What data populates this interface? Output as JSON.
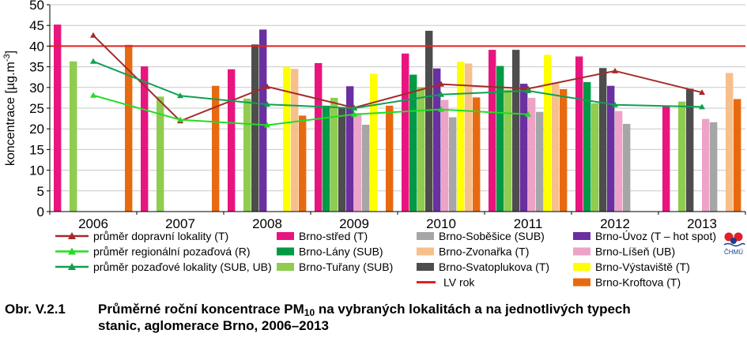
{
  "chart_data": {
    "type": "bar",
    "title": "",
    "xlabel": "",
    "ylabel": "koncentrace [µg.m-3]",
    "ylim": [
      0,
      50
    ],
    "yticks": [
      "0",
      "5",
      "10",
      "15",
      "20",
      "25",
      "30",
      "35",
      "40",
      "45",
      "50"
    ],
    "categories": [
      "2006",
      "2007",
      "2008",
      "2009",
      "2010",
      "2011",
      "2012",
      "2013"
    ],
    "grid": "horizontal",
    "legend_position": "bottom",
    "bar_series": [
      {
        "name": "Brno-střed (T)",
        "color": "#e8157f",
        "values": [
          45.2,
          35.1,
          34.4,
          35.9,
          38.2,
          39.1,
          37.5,
          25.5
        ]
      },
      {
        "name": "Brno-Lány (SUB)",
        "color": "#009a44",
        "values": [
          null,
          null,
          null,
          25.6,
          33.1,
          35.2,
          31.3,
          null
        ]
      },
      {
        "name": "Brno-Tuřany (SUB)",
        "color": "#8fcc4f",
        "values": [
          36.3,
          27.8,
          27.3,
          27.5,
          30.1,
          29.5,
          26.2,
          26.6
        ]
      },
      {
        "name": "Brno-Svatoplukova (T)",
        "color": "#4d4d4d",
        "values": [
          null,
          null,
          40.4,
          25.1,
          43.7,
          39.1,
          34.7,
          29.7
        ]
      },
      {
        "name": "Brno-Úvoz (T – hot spot)",
        "color": "#6a2fa0",
        "values": [
          null,
          null,
          44.0,
          30.3,
          34.6,
          30.9,
          30.4,
          null
        ]
      },
      {
        "name": "Brno-Líšeň (UB)",
        "color": "#eda3c7",
        "values": [
          null,
          null,
          null,
          23.8,
          27.0,
          27.5,
          24.3,
          22.4
        ]
      },
      {
        "name": "Brno-Soběšice (SUB)",
        "color": "#a6a6a6",
        "values": [
          null,
          null,
          null,
          21.0,
          22.8,
          24.1,
          21.2,
          21.6
        ]
      },
      {
        "name": "Brno-Výstaviště (T)",
        "color": "#ffff00",
        "values": [
          null,
          null,
          35.0,
          33.3,
          36.2,
          37.9,
          null,
          null
        ]
      },
      {
        "name": "Brno-Zvonařka (T)",
        "color": "#f7bf8c",
        "values": [
          null,
          null,
          34.5,
          null,
          35.8,
          31.2,
          null,
          33.5
        ]
      },
      {
        "name": "Brno-Kroftova (T)",
        "color": "#e86a10",
        "values": [
          40.3,
          30.4,
          23.2,
          25.6,
          27.6,
          29.6,
          null,
          27.2
        ]
      }
    ],
    "line_series": [
      {
        "name": "průměr dopravní lokality (T)",
        "color": "#a52a2a",
        "values": [
          42.6,
          21.9,
          30.2,
          25.1,
          30.8,
          29.7,
          34.0,
          28.8
        ]
      },
      {
        "name": "průměr regionální pozaďová (R)",
        "color": "#22dd22",
        "values": [
          28.1,
          22.2,
          20.9,
          23.5,
          24.7,
          23.5,
          null,
          null
        ]
      },
      {
        "name": "průměr pozaďové lokality (SUB, UB)",
        "color": "#10a050",
        "values": [
          36.3,
          28.0,
          25.9,
          25.0,
          28.3,
          29.2,
          25.8,
          25.3
        ]
      }
    ],
    "limit_line": {
      "name": "LV rok",
      "value": 40,
      "color": "#e32020"
    }
  },
  "legend": {
    "col1": [
      {
        "label": "průměr dopravní lokality (T)",
        "color": "#a52a2a"
      },
      {
        "label": "průměr regionální pozaďová (R)",
        "color": "#22dd22"
      },
      {
        "label": "průměr pozaďové lokality (SUB, UB)",
        "color": "#10a050"
      }
    ],
    "col2": [
      {
        "label": "Brno-střed (T)",
        "color": "#e8157f"
      },
      {
        "label": "Brno-Lány (SUB)",
        "color": "#009a44"
      },
      {
        "label": "Brno-Tuřany (SUB)",
        "color": "#8fcc4f"
      }
    ],
    "col3": [
      {
        "label": "Brno-Soběšice (SUB)",
        "color": "#a6a6a6"
      },
      {
        "label": "Brno-Zvonařka (T)",
        "color": "#f7bf8c"
      },
      {
        "label": "Brno-Svatoplukova (T)",
        "color": "#4d4d4d"
      },
      {
        "label": "LV rok",
        "color": "#e32020"
      }
    ],
    "col4": [
      {
        "label": "Brno-Úvoz (T – hot spot)",
        "color": "#6a2fa0"
      },
      {
        "label": "Brno-Líšeň (UB)",
        "color": "#eda3c7"
      },
      {
        "label": "Brno-Výstaviště (T)",
        "color": "#ffff00"
      },
      {
        "label": "Brno-Kroftova (T)",
        "color": "#e86a10"
      }
    ]
  },
  "caption": {
    "number": "Obr. V.2.1",
    "text_before_sub": "Průměrné roční koncentrace PM",
    "sub": "10",
    "text_after_sub": " na vybraných lokalitách a na jednotlivých typech",
    "line2": "stanic, aglomerace Brno, 2006–2013"
  },
  "logo": {
    "text": "ČHMÚ"
  }
}
